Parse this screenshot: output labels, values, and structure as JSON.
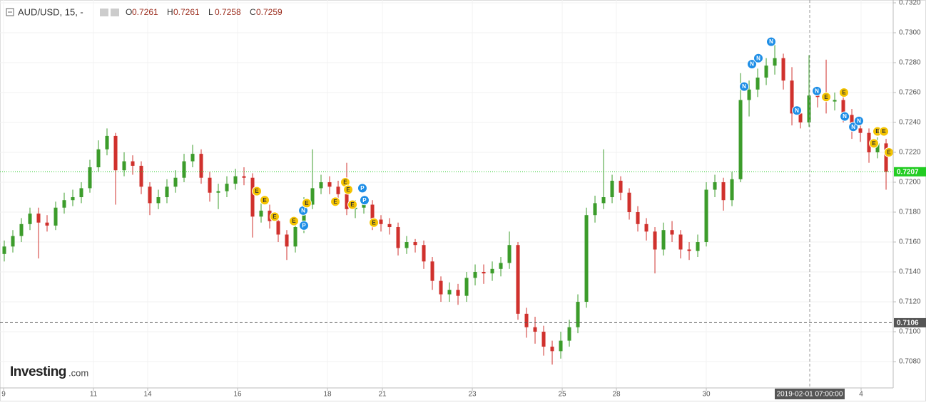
{
  "chart_data": {
    "type": "candlestick",
    "title": "AUD/USD, 15, -",
    "ohlc": [
      {
        "key": "O",
        "value": 0.7261
      },
      {
        "key": "H",
        "value": 0.7261
      },
      {
        "key": "L",
        "value": 0.7258
      },
      {
        "key": "C",
        "value": 0.7259
      }
    ],
    "watermark": {
      "brand": "Investing",
      "suffix": ".com"
    },
    "up_color": "#3c9c2b",
    "down_color": "#d0312d",
    "xlim": [
      0,
      104.33
    ],
    "ylim": [
      0.70624,
      0.73219
    ],
    "grid": true,
    "xticks": [
      {
        "value": 0.42,
        "label": "9"
      },
      {
        "value": 10.92,
        "label": "11"
      },
      {
        "value": 17.25,
        "label": "14"
      },
      {
        "value": 27.75,
        "label": "16"
      },
      {
        "value": 38.25,
        "label": "18"
      },
      {
        "value": 44.67,
        "label": "21"
      },
      {
        "value": 55.17,
        "label": "23"
      },
      {
        "value": 65.67,
        "label": "25"
      },
      {
        "value": 72,
        "label": "28"
      },
      {
        "value": 82.5,
        "label": "30"
      },
      {
        "value": 100.58,
        "label": "4"
      }
    ],
    "yticks": [
      {
        "value": 0.708,
        "label": "0.7080"
      },
      {
        "value": 0.71,
        "label": "0.7100"
      },
      {
        "value": 0.712,
        "label": "0.7120"
      },
      {
        "value": 0.714,
        "label": "0.7140"
      },
      {
        "value": 0.716,
        "label": "0.7160"
      },
      {
        "value": 0.718,
        "label": "0.7180"
      },
      {
        "value": 0.72,
        "label": "0.7200"
      },
      {
        "value": 0.722,
        "label": "0.7220"
      },
      {
        "value": 0.724,
        "label": "0.7240"
      },
      {
        "value": 0.726,
        "label": "0.7260"
      },
      {
        "value": 0.728,
        "label": "0.7280"
      },
      {
        "value": 0.73,
        "label": "0.7300"
      },
      {
        "value": 0.732,
        "label": "0.7320"
      }
    ],
    "price_lines": [
      {
        "value": 0.7207,
        "color": "#22cc22",
        "style": "dotted"
      },
      {
        "value": 0.7106,
        "color": "#555555",
        "style": "dashed"
      }
    ],
    "crosshair": {
      "x": 94.58,
      "label": "2019-02-01 07:00:00"
    },
    "open": [
      0.7152,
      0.7157,
      0.7164,
      0.7172,
      0.7179,
      0.7173,
      0.7171,
      0.7183,
      0.7188,
      0.719,
      0.7196,
      0.721,
      0.7222,
      0.7231,
      0.7208,
      0.7214,
      0.7211,
      0.7197,
      0.7186,
      0.719,
      0.7197,
      0.7203,
      0.7214,
      0.7219,
      0.7203,
      0.7193,
      0.7194,
      0.7199,
      0.7204,
      0.7203,
      0.7177,
      0.7181,
      0.7174,
      0.7165,
      0.7157,
      0.717,
      0.7185,
      0.7196,
      0.72,
      0.7197,
      0.7192,
      0.7182,
      0.7183,
      0.7185,
      0.7175,
      0.7172,
      0.717,
      0.7156,
      0.716,
      0.7158,
      0.7147,
      0.7134,
      0.7125,
      0.7128,
      0.7124,
      0.7136,
      0.714,
      0.7139,
      0.7142,
      0.7146,
      0.7158,
      0.7112,
      0.7103,
      0.71,
      0.709,
      0.7087,
      0.7094,
      0.7103,
      0.712,
      0.7178,
      0.7186,
      0.719,
      0.7201,
      0.7193,
      0.718,
      0.7172,
      0.7167,
      0.7155,
      0.7168,
      0.7165,
      0.7155,
      0.7154,
      0.716,
      0.7195,
      0.72,
      0.7188,
      0.7202,
      0.7255,
      0.7262,
      0.727,
      0.7278,
      0.7283,
      0.7268,
      0.7246,
      0.724,
      0.7258,
      0.7257,
      0.7254,
      0.7255,
      0.7245,
      0.7236,
      0.7233,
      0.722,
      0.7226
    ],
    "high": [
      0.7161,
      0.7168,
      0.7176,
      0.7183,
      0.7183,
      0.7178,
      0.7187,
      0.7193,
      0.7195,
      0.72,
      0.7215,
      0.7228,
      0.7236,
      0.7233,
      0.722,
      0.7218,
      0.7214,
      0.72,
      0.7195,
      0.7202,
      0.7208,
      0.7219,
      0.7225,
      0.7222,
      0.7207,
      0.7199,
      0.7204,
      0.7209,
      0.721,
      0.7206,
      0.7186,
      0.7185,
      0.7178,
      0.7168,
      0.7175,
      0.719,
      0.7222,
      0.7205,
      0.7204,
      0.7201,
      0.7213,
      0.7188,
      0.719,
      0.7188,
      0.7178,
      0.7176,
      0.7173,
      0.7164,
      0.7162,
      0.7161,
      0.715,
      0.7137,
      0.7133,
      0.7132,
      0.714,
      0.7145,
      0.7145,
      0.7147,
      0.715,
      0.7167,
      0.716,
      0.7116,
      0.711,
      0.7104,
      0.7094,
      0.71,
      0.7108,
      0.7125,
      0.7183,
      0.7191,
      0.7222,
      0.7205,
      0.7204,
      0.7196,
      0.7184,
      0.7176,
      0.717,
      0.7173,
      0.7174,
      0.7168,
      0.716,
      0.7165,
      0.72,
      0.7205,
      0.7203,
      0.7207,
      0.7273,
      0.7268,
      0.7276,
      0.7283,
      0.7293,
      0.7286,
      0.7277,
      0.725,
      0.7285,
      0.7264,
      0.7282,
      0.726,
      0.7258,
      0.7249,
      0.724,
      0.7236,
      0.723,
      0.7229
    ],
    "low": [
      0.7147,
      0.7153,
      0.716,
      0.7168,
      0.7149,
      0.7167,
      0.7168,
      0.7179,
      0.7184,
      0.7186,
      0.7193,
      0.7207,
      0.7218,
      0.7185,
      0.7204,
      0.7205,
      0.7192,
      0.7178,
      0.7182,
      0.7186,
      0.7193,
      0.72,
      0.721,
      0.7199,
      0.7187,
      0.7182,
      0.719,
      0.7195,
      0.7198,
      0.7163,
      0.7173,
      0.7169,
      0.716,
      0.7148,
      0.7153,
      0.7166,
      0.7182,
      0.7192,
      0.7192,
      0.7188,
      0.7178,
      0.7176,
      0.7179,
      0.7168,
      0.7167,
      0.7165,
      0.7151,
      0.7152,
      0.7153,
      0.7142,
      0.7128,
      0.712,
      0.712,
      0.7118,
      0.712,
      0.7131,
      0.7132,
      0.7134,
      0.7137,
      0.7142,
      0.7108,
      0.7096,
      0.7092,
      0.7084,
      0.7078,
      0.7082,
      0.709,
      0.7099,
      0.7116,
      0.7173,
      0.7182,
      0.7186,
      0.7188,
      0.7175,
      0.7167,
      0.7161,
      0.7139,
      0.7151,
      0.716,
      0.7149,
      0.7148,
      0.715,
      0.7157,
      0.719,
      0.7181,
      0.7184,
      0.72,
      0.7244,
      0.7257,
      0.7265,
      0.7272,
      0.7262,
      0.7238,
      0.7236,
      0.7237,
      0.725,
      0.7246,
      0.7248,
      0.724,
      0.7229,
      0.7227,
      0.7213,
      0.7216,
      0.7195
    ],
    "close": [
      0.7157,
      0.7164,
      0.7172,
      0.7179,
      0.7173,
      0.7171,
      0.7183,
      0.7188,
      0.719,
      0.7196,
      0.721,
      0.7222,
      0.7231,
      0.7208,
      0.7214,
      0.7211,
      0.7197,
      0.7186,
      0.719,
      0.7197,
      0.7203,
      0.7214,
      0.7219,
      0.7203,
      0.7193,
      0.7194,
      0.7199,
      0.7204,
      0.7203,
      0.7177,
      0.7181,
      0.7174,
      0.7165,
      0.7157,
      0.717,
      0.7185,
      0.7196,
      0.72,
      0.7197,
      0.7192,
      0.7182,
      0.7183,
      0.7185,
      0.7175,
      0.7172,
      0.717,
      0.7156,
      0.716,
      0.7158,
      0.7147,
      0.7134,
      0.7125,
      0.7128,
      0.7124,
      0.7136,
      0.714,
      0.7139,
      0.7142,
      0.7146,
      0.7158,
      0.7112,
      0.7103,
      0.71,
      0.709,
      0.7087,
      0.7094,
      0.7103,
      0.712,
      0.7178,
      0.7186,
      0.719,
      0.7201,
      0.7193,
      0.718,
      0.7172,
      0.7167,
      0.7155,
      0.7168,
      0.7165,
      0.7155,
      0.7154,
      0.716,
      0.7195,
      0.72,
      0.7188,
      0.7202,
      0.7255,
      0.7262,
      0.727,
      0.7278,
      0.7283,
      0.7268,
      0.7246,
      0.724,
      0.7258,
      0.7257,
      0.7254,
      0.7255,
      0.7245,
      0.7236,
      0.7233,
      0.722,
      0.7226,
      0.7207
    ],
    "event_colors": {
      "E": "#f5c400",
      "N": "#1e8ee6",
      "P": "#1e8ee6"
    },
    "events": [
      {
        "label": "E",
        "x": 30.0,
        "y": 0.7194
      },
      {
        "label": "E",
        "x": 30.92,
        "y": 0.7188
      },
      {
        "label": "E",
        "x": 32.08,
        "y": 0.7177
      },
      {
        "label": "E",
        "x": 34.33,
        "y": 0.7174
      },
      {
        "label": "N",
        "x": 35.42,
        "y": 0.7181
      },
      {
        "label": "E",
        "x": 35.83,
        "y": 0.7186
      },
      {
        "label": "P",
        "x": 35.5,
        "y": 0.7171
      },
      {
        "label": "E",
        "x": 39.17,
        "y": 0.7187
      },
      {
        "label": "E",
        "x": 40.33,
        "y": 0.72
      },
      {
        "label": "E",
        "x": 40.67,
        "y": 0.7195
      },
      {
        "label": "E",
        "x": 41.17,
        "y": 0.7185
      },
      {
        "label": "P",
        "x": 42.33,
        "y": 0.7196
      },
      {
        "label": "P",
        "x": 42.58,
        "y": 0.7188
      },
      {
        "label": "E",
        "x": 43.67,
        "y": 0.7173
      },
      {
        "label": "N",
        "x": 86.92,
        "y": 0.7264
      },
      {
        "label": "N",
        "x": 87.83,
        "y": 0.7279
      },
      {
        "label": "N",
        "x": 88.58,
        "y": 0.7283
      },
      {
        "label": "N",
        "x": 90.08,
        "y": 0.7294
      },
      {
        "label": "N",
        "x": 93.08,
        "y": 0.7248
      },
      {
        "label": "N",
        "x": 95.42,
        "y": 0.7261
      },
      {
        "label": "E",
        "x": 96.5,
        "y": 0.7257
      },
      {
        "label": "E",
        "x": 98.58,
        "y": 0.726
      },
      {
        "label": "N",
        "x": 98.67,
        "y": 0.7244
      },
      {
        "label": "N",
        "x": 99.67,
        "y": 0.7237
      },
      {
        "label": "N",
        "x": 100.33,
        "y": 0.7241
      },
      {
        "label": "E",
        "x": 102.08,
        "y": 0.7226
      },
      {
        "label": "E",
        "x": 102.5,
        "y": 0.7234
      },
      {
        "label": "E",
        "x": 103.25,
        "y": 0.7234
      },
      {
        "label": "E",
        "x": 103.83,
        "y": 0.722
      }
    ]
  }
}
